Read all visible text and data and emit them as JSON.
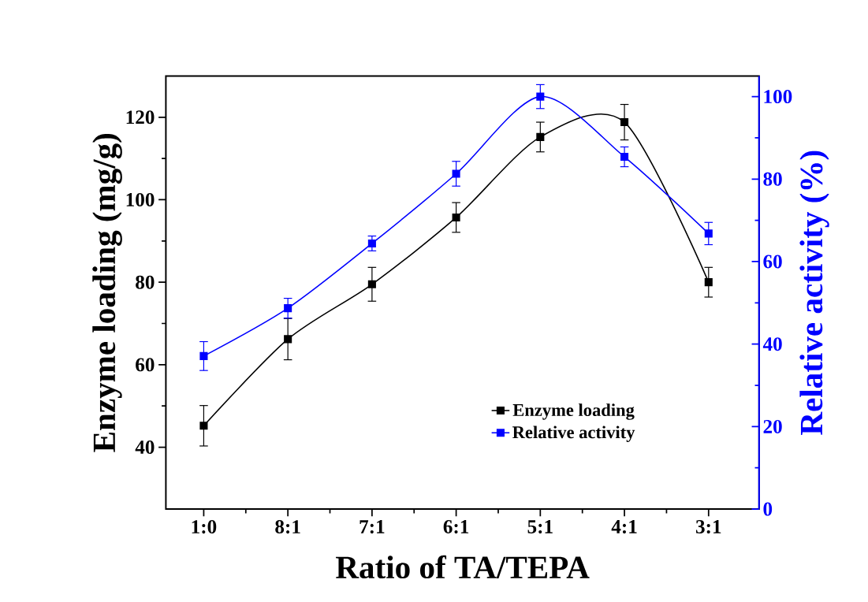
{
  "chart_data": {
    "type": "line",
    "xlabel": "Ratio of TA/TEPA",
    "ylabel": "Enzyme loading (mg/g)",
    "y2label": "Relative activity (%)",
    "categories": [
      "1:0",
      "8:1",
      "7:1",
      "6:1",
      "5:1",
      "4:1",
      "3:1"
    ],
    "series": [
      {
        "name": "Enzyme loading",
        "color": "#000000",
        "values": [
          45.2,
          66.2,
          79.5,
          95.7,
          115.2,
          118.8,
          80.0
        ],
        "errors": [
          4.9,
          5.0,
          4.1,
          3.6,
          3.6,
          4.3,
          3.6
        ]
      },
      {
        "name": "Relative activity",
        "color": "#0000ff",
        "axis": "y2",
        "values": [
          37.1,
          48.7,
          64.4,
          81.3,
          100.0,
          85.4,
          66.8
        ],
        "errors": [
          3.5,
          2.4,
          1.8,
          3.0,
          2.9,
          2.4,
          2.7
        ]
      }
    ],
    "ylim": [
      25,
      130
    ],
    "yticks": [
      40,
      60,
      80,
      100,
      120
    ],
    "y2lim": [
      0,
      105
    ],
    "y2ticks": [
      0,
      20,
      40,
      60,
      80,
      100
    ],
    "legend": "bottom right",
    "marker": "square",
    "line_style": "solid"
  }
}
